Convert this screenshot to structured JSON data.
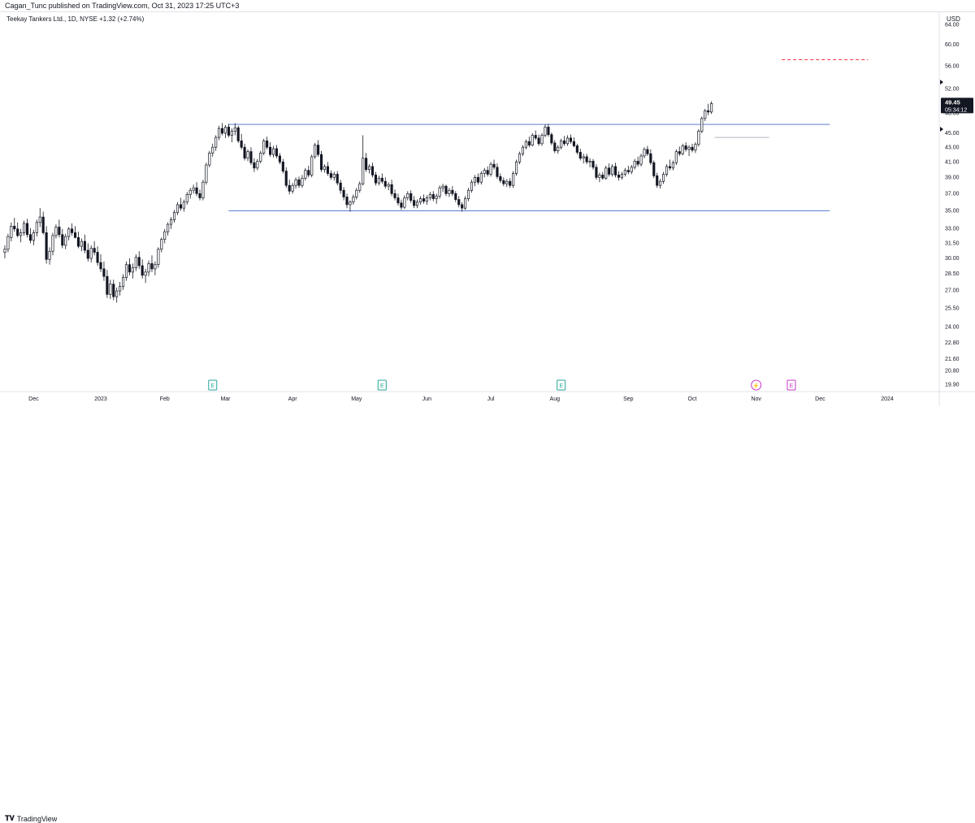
{
  "publisher_line": "Cagan_Tunc published on TradingView.com, Oct 31, 2023 17:25 UTC+3",
  "symbol_line": "Teekay Tankers Ltd., 1D, NYSE +1.32 (+2.74%)",
  "currency": "USD",
  "brand": "TradingView",
  "brand_icon": "tradingview-logo-icon",
  "colors": {
    "candle": "#131722",
    "support_resistance_line": "#5b7fd1",
    "target_line": "#f23645",
    "earnings_marker": "#26a69a",
    "event_marker": "#c837c8"
  },
  "chart_data": {
    "type": "candlestick",
    "y_scale": "log",
    "ylim": [
      19.5,
      66
    ],
    "y_ticks": [
      "64.00",
      "60.00",
      "56.00",
      "52.00",
      "48.00",
      "45.00",
      "43.00",
      "41.00",
      "39.00",
      "37.00",
      "35.00",
      "33.00",
      "31.50",
      "30.00",
      "28.50",
      "27.00",
      "25.50",
      "24.00",
      "22.80",
      "21.60",
      "20.80",
      "19.90"
    ],
    "x_ticks": [
      "Dec",
      "2023",
      "Feb",
      "Mar",
      "Apr",
      "May",
      "Jun",
      "Jul",
      "Aug",
      "Sep",
      "Oct",
      "Nov",
      "Dec",
      "2024"
    ],
    "x_tick_index": [
      9,
      30,
      50,
      69,
      90,
      110,
      132,
      152,
      172,
      195,
      215,
      235,
      255,
      276
    ],
    "x_range": [
      -0.5,
      292
    ],
    "last_price": {
      "value": "49.45",
      "countdown": "05:34:12",
      "price": 49.45
    },
    "price_markers": [
      {
        "price": 53.0
      },
      {
        "price": 45.5
      }
    ],
    "horizontal_lines": [
      {
        "price": 46.2,
        "x_start": 70,
        "x_end": 258,
        "style": "solid",
        "color": "#5b7fd1"
      },
      {
        "price": 34.9,
        "x_start": 70,
        "x_end": 258,
        "style": "solid",
        "color": "#5b7fd1"
      },
      {
        "price": 57.0,
        "x_start": 243,
        "x_end": 270,
        "style": "dashed",
        "color": "#f23645"
      },
      {
        "price": 44.3,
        "x_start": 222,
        "x_end": 239,
        "style": "solid",
        "color": "#b2b5be"
      }
    ],
    "events": [
      {
        "label": "E",
        "index": 65,
        "type": "earnings"
      },
      {
        "label": "E",
        "index": 118,
        "type": "earnings"
      },
      {
        "label": "E",
        "index": 174,
        "type": "earnings"
      },
      {
        "label": "⚡",
        "index": 235,
        "type": "dividend"
      },
      {
        "label": "E",
        "index": 246,
        "type": "earnings-upcoming"
      }
    ],
    "ohlc": [
      [
        30.5,
        31.2,
        29.9,
        30.8
      ],
      [
        30.8,
        32.4,
        30.5,
        32.1
      ],
      [
        32.0,
        33.6,
        31.6,
        33.2
      ],
      [
        33.2,
        34.1,
        32.6,
        32.9
      ],
      [
        32.9,
        33.6,
        32.0,
        32.2
      ],
      [
        32.2,
        32.9,
        31.5,
        32.5
      ],
      [
        32.5,
        33.8,
        32.2,
        33.5
      ],
      [
        33.5,
        34.0,
        32.0,
        32.3
      ],
      [
        32.3,
        33.0,
        31.4,
        31.7
      ],
      [
        31.7,
        32.8,
        31.2,
        32.5
      ],
      [
        32.5,
        33.9,
        32.1,
        33.6
      ],
      [
        33.6,
        35.2,
        33.1,
        34.2
      ],
      [
        34.2,
        34.8,
        32.3,
        32.5
      ],
      [
        32.5,
        33.2,
        29.4,
        29.8
      ],
      [
        29.8,
        31.0,
        29.3,
        30.6
      ],
      [
        30.6,
        32.5,
        30.2,
        32.2
      ],
      [
        32.2,
        33.4,
        31.9,
        33.1
      ],
      [
        33.1,
        33.9,
        32.0,
        32.3
      ],
      [
        32.3,
        32.9,
        30.9,
        31.2
      ],
      [
        31.2,
        32.4,
        30.8,
        32.1
      ],
      [
        32.1,
        33.1,
        31.7,
        32.9
      ],
      [
        32.9,
        33.5,
        32.2,
        32.5
      ],
      [
        32.5,
        33.2,
        31.9,
        32.0
      ],
      [
        32.0,
        32.6,
        30.9,
        31.1
      ],
      [
        31.1,
        31.9,
        30.6,
        31.6
      ],
      [
        31.6,
        32.3,
        30.4,
        30.7
      ],
      [
        30.7,
        31.4,
        29.6,
        29.9
      ],
      [
        29.9,
        31.2,
        29.5,
        30.9
      ],
      [
        30.9,
        31.6,
        30.2,
        30.5
      ],
      [
        30.5,
        31.1,
        29.2,
        29.5
      ],
      [
        29.5,
        30.3,
        28.6,
        28.9
      ],
      [
        28.9,
        29.6,
        27.8,
        28.2
      ],
      [
        28.2,
        28.8,
        26.3,
        26.6
      ],
      [
        26.6,
        27.9,
        26.2,
        27.5
      ],
      [
        27.5,
        27.9,
        26.1,
        26.4
      ],
      [
        26.4,
        27.2,
        25.9,
        26.9
      ],
      [
        26.9,
        27.7,
        26.5,
        27.3
      ],
      [
        27.3,
        28.4,
        27.0,
        28.1
      ],
      [
        28.1,
        29.6,
        27.8,
        29.3
      ],
      [
        29.3,
        29.9,
        28.3,
        28.6
      ],
      [
        28.6,
        29.4,
        28.0,
        29.0
      ],
      [
        29.0,
        30.3,
        28.7,
        30.0
      ],
      [
        30.0,
        30.6,
        28.9,
        29.2
      ],
      [
        29.2,
        29.8,
        28.0,
        28.3
      ],
      [
        28.3,
        28.9,
        27.6,
        28.6
      ],
      [
        28.6,
        29.7,
        28.2,
        29.4
      ],
      [
        29.4,
        30.2,
        28.6,
        28.9
      ],
      [
        28.9,
        29.6,
        28.3,
        29.3
      ],
      [
        29.3,
        31.0,
        29.0,
        30.8
      ],
      [
        30.8,
        32.0,
        30.5,
        31.8
      ],
      [
        31.8,
        32.9,
        31.4,
        32.6
      ],
      [
        32.6,
        33.6,
        32.2,
        33.4
      ],
      [
        33.4,
        34.2,
        32.9,
        33.9
      ],
      [
        33.9,
        35.0,
        33.6,
        34.7
      ],
      [
        34.7,
        35.9,
        34.4,
        35.6
      ],
      [
        35.6,
        36.4,
        34.9,
        35.2
      ],
      [
        35.2,
        36.2,
        34.8,
        35.9
      ],
      [
        35.9,
        37.1,
        35.6,
        36.8
      ],
      [
        36.8,
        37.6,
        36.3,
        37.3
      ],
      [
        37.3,
        38.0,
        36.9,
        37.6
      ],
      [
        37.6,
        38.3,
        36.6,
        36.9
      ],
      [
        36.9,
        37.4,
        36.1,
        36.4
      ],
      [
        36.4,
        38.6,
        36.1,
        38.3
      ],
      [
        38.3,
        40.8,
        38.0,
        40.5
      ],
      [
        40.5,
        42.4,
        40.2,
        42.1
      ],
      [
        42.1,
        43.4,
        41.6,
        42.9
      ],
      [
        42.9,
        44.6,
        42.4,
        44.3
      ],
      [
        44.3,
        46.0,
        43.9,
        45.6
      ],
      [
        45.6,
        46.4,
        44.6,
        44.9
      ],
      [
        44.9,
        46.1,
        44.2,
        45.8
      ],
      [
        45.8,
        46.3,
        44.3,
        44.6
      ],
      [
        44.6,
        45.6,
        43.6,
        45.2
      ],
      [
        45.2,
        46.4,
        44.6,
        45.7
      ],
      [
        45.7,
        46.0,
        43.5,
        43.8
      ],
      [
        43.8,
        44.8,
        42.6,
        42.9
      ],
      [
        42.9,
        43.4,
        41.1,
        41.4
      ],
      [
        41.4,
        42.6,
        41.0,
        42.3
      ],
      [
        42.3,
        42.9,
        40.5,
        40.8
      ],
      [
        40.8,
        41.4,
        39.6,
        40.1
      ],
      [
        40.1,
        41.3,
        39.8,
        41.0
      ],
      [
        41.0,
        42.4,
        40.7,
        42.1
      ],
      [
        42.1,
        44.1,
        41.8,
        43.8
      ],
      [
        43.8,
        44.4,
        42.6,
        42.9
      ],
      [
        42.9,
        43.6,
        41.6,
        41.9
      ],
      [
        41.9,
        43.1,
        41.5,
        42.7
      ],
      [
        42.7,
        43.2,
        41.4,
        41.7
      ],
      [
        41.7,
        42.1,
        40.6,
        40.9
      ],
      [
        40.9,
        41.3,
        39.4,
        39.7
      ],
      [
        39.7,
        40.2,
        37.6,
        37.9
      ],
      [
        37.9,
        38.6,
        36.8,
        37.2
      ],
      [
        37.2,
        38.2,
        36.9,
        37.9
      ],
      [
        37.9,
        38.9,
        37.5,
        38.6
      ],
      [
        38.6,
        39.0,
        37.6,
        37.9
      ],
      [
        37.9,
        39.2,
        37.6,
        38.8
      ],
      [
        38.8,
        40.1,
        38.5,
        39.8
      ],
      [
        39.8,
        40.4,
        38.9,
        39.2
      ],
      [
        39.2,
        41.9,
        38.9,
        41.6
      ],
      [
        41.6,
        43.5,
        41.3,
        43.2
      ],
      [
        43.2,
        43.9,
        41.6,
        41.9
      ],
      [
        41.9,
        42.4,
        39.6,
        39.9
      ],
      [
        39.9,
        40.6,
        39.5,
        40.3
      ],
      [
        40.3,
        40.9,
        39.1,
        39.4
      ],
      [
        39.4,
        39.8,
        38.6,
        38.9
      ],
      [
        38.9,
        39.6,
        38.5,
        39.3
      ],
      [
        39.3,
        39.7,
        37.9,
        38.2
      ],
      [
        38.2,
        38.6,
        36.9,
        37.3
      ],
      [
        37.3,
        37.7,
        36.1,
        36.5
      ],
      [
        36.5,
        36.9,
        35.2,
        35.6
      ],
      [
        35.6,
        36.1,
        34.8,
        35.9
      ],
      [
        35.9,
        36.8,
        35.6,
        36.5
      ],
      [
        36.5,
        37.6,
        36.2,
        37.3
      ],
      [
        37.3,
        38.4,
        37.0,
        38.1
      ],
      [
        38.1,
        44.6,
        37.9,
        41.4
      ],
      [
        41.4,
        42.1,
        39.6,
        39.9
      ],
      [
        39.9,
        40.6,
        39.4,
        40.3
      ],
      [
        40.3,
        40.8,
        38.9,
        39.2
      ],
      [
        39.2,
        39.6,
        37.9,
        38.2
      ],
      [
        38.2,
        39.1,
        37.9,
        38.8
      ],
      [
        38.8,
        39.4,
        38.1,
        38.4
      ],
      [
        38.4,
        38.9,
        37.5,
        37.8
      ],
      [
        37.8,
        38.3,
        37.3,
        38.0
      ],
      [
        38.0,
        38.6,
        36.6,
        36.9
      ],
      [
        36.9,
        37.4,
        36.1,
        36.4
      ],
      [
        36.4,
        36.9,
        35.5,
        35.8
      ],
      [
        35.8,
        36.2,
        35.0,
        35.3
      ],
      [
        35.3,
        36.7,
        35.1,
        36.4
      ],
      [
        36.4,
        37.2,
        36.1,
        36.9
      ],
      [
        36.9,
        37.3,
        35.8,
        36.1
      ],
      [
        36.1,
        36.6,
        35.2,
        35.5
      ],
      [
        35.5,
        36.2,
        35.2,
        35.9
      ],
      [
        35.9,
        36.6,
        35.6,
        36.3
      ],
      [
        36.3,
        36.8,
        35.7,
        36.0
      ],
      [
        36.0,
        36.7,
        35.6,
        36.4
      ],
      [
        36.4,
        37.1,
        36.1,
        36.8
      ],
      [
        36.8,
        37.2,
        36.0,
        36.3
      ],
      [
        36.3,
        36.9,
        35.7,
        36.6
      ],
      [
        36.6,
        37.9,
        36.3,
        37.6
      ],
      [
        37.6,
        38.1,
        37.1,
        37.8
      ],
      [
        37.8,
        38.0,
        36.6,
        36.9
      ],
      [
        36.9,
        37.6,
        36.5,
        37.3
      ],
      [
        37.3,
        37.8,
        36.6,
        36.9
      ],
      [
        36.9,
        37.2,
        35.9,
        36.2
      ],
      [
        36.2,
        36.6,
        35.3,
        35.6
      ],
      [
        35.6,
        35.9,
        34.8,
        35.2
      ],
      [
        35.2,
        36.6,
        35.0,
        36.3
      ],
      [
        36.3,
        37.6,
        36.0,
        37.3
      ],
      [
        37.3,
        38.6,
        37.0,
        38.3
      ],
      [
        38.3,
        39.2,
        37.8,
        38.9
      ],
      [
        38.9,
        39.4,
        38.0,
        38.3
      ],
      [
        38.3,
        39.7,
        38.0,
        39.4
      ],
      [
        39.4,
        40.1,
        38.9,
        39.8
      ],
      [
        39.8,
        40.3,
        39.0,
        39.3
      ],
      [
        39.3,
        40.9,
        39.0,
        40.6
      ],
      [
        40.6,
        41.2,
        39.9,
        40.2
      ],
      [
        40.2,
        40.7,
        38.7,
        39.0
      ],
      [
        39.0,
        39.4,
        38.2,
        38.5
      ],
      [
        38.5,
        38.9,
        37.8,
        38.1
      ],
      [
        38.1,
        38.7,
        37.7,
        38.4
      ],
      [
        38.4,
        38.8,
        37.6,
        37.9
      ],
      [
        37.9,
        39.7,
        37.6,
        39.4
      ],
      [
        39.4,
        41.2,
        39.1,
        40.9
      ],
      [
        40.9,
        42.3,
        40.6,
        42.0
      ],
      [
        42.0,
        43.2,
        41.7,
        42.9
      ],
      [
        42.9,
        44.0,
        42.6,
        43.7
      ],
      [
        43.7,
        44.4,
        42.9,
        43.2
      ],
      [
        43.2,
        44.9,
        43.0,
        44.6
      ],
      [
        44.6,
        45.3,
        43.9,
        44.2
      ],
      [
        44.2,
        44.7,
        43.1,
        43.4
      ],
      [
        43.4,
        44.9,
        43.1,
        44.6
      ],
      [
        44.6,
        46.2,
        44.3,
        45.8
      ],
      [
        45.8,
        46.3,
        44.4,
        44.7
      ],
      [
        44.7,
        45.0,
        43.2,
        43.5
      ],
      [
        43.5,
        43.9,
        42.1,
        42.4
      ],
      [
        42.4,
        43.2,
        42.0,
        42.9
      ],
      [
        42.9,
        44.1,
        42.6,
        43.8
      ],
      [
        43.8,
        44.5,
        43.1,
        43.4
      ],
      [
        43.4,
        44.6,
        43.1,
        44.2
      ],
      [
        44.2,
        44.7,
        43.4,
        43.7
      ],
      [
        43.7,
        44.3,
        42.9,
        43.1
      ],
      [
        43.1,
        43.4,
        41.9,
        42.2
      ],
      [
        42.2,
        42.7,
        41.1,
        41.4
      ],
      [
        41.4,
        42.0,
        40.7,
        41.6
      ],
      [
        41.6,
        42.0,
        40.6,
        40.9
      ],
      [
        40.9,
        41.4,
        40.2,
        41.0
      ],
      [
        41.0,
        41.3,
        39.9,
        40.2
      ],
      [
        40.2,
        40.6,
        38.6,
        38.9
      ],
      [
        38.9,
        39.5,
        38.3,
        39.2
      ],
      [
        39.2,
        39.6,
        38.6,
        38.8
      ],
      [
        38.8,
        40.4,
        38.6,
        40.1
      ],
      [
        40.1,
        40.7,
        39.0,
        39.3
      ],
      [
        39.3,
        40.6,
        39.0,
        40.3
      ],
      [
        40.3,
        40.8,
        38.9,
        39.2
      ],
      [
        39.2,
        39.7,
        38.5,
        38.9
      ],
      [
        38.9,
        39.6,
        38.6,
        39.3
      ],
      [
        39.3,
        40.1,
        39.0,
        39.8
      ],
      [
        39.8,
        40.4,
        39.3,
        39.6
      ],
      [
        39.6,
        40.5,
        39.3,
        40.2
      ],
      [
        40.2,
        41.3,
        39.9,
        41.0
      ],
      [
        41.0,
        41.6,
        40.3,
        40.6
      ],
      [
        40.6,
        42.0,
        40.3,
        41.7
      ],
      [
        41.7,
        42.9,
        41.4,
        42.6
      ],
      [
        42.6,
        43.1,
        41.7,
        42.0
      ],
      [
        42.0,
        42.6,
        40.5,
        40.8
      ],
      [
        40.8,
        41.1,
        38.8,
        39.1
      ],
      [
        39.1,
        39.5,
        37.6,
        37.9
      ],
      [
        37.9,
        38.7,
        37.5,
        38.4
      ],
      [
        38.4,
        39.6,
        38.1,
        39.3
      ],
      [
        39.3,
        40.6,
        39.0,
        40.3
      ],
      [
        40.3,
        41.2,
        39.8,
        40.1
      ],
      [
        40.1,
        41.1,
        39.8,
        40.8
      ],
      [
        40.8,
        42.6,
        40.5,
        42.3
      ],
      [
        42.3,
        43.0,
        41.7,
        42.0
      ],
      [
        42.0,
        43.4,
        41.8,
        43.1
      ],
      [
        43.1,
        43.6,
        42.3,
        42.6
      ],
      [
        42.6,
        43.2,
        41.7,
        42.9
      ],
      [
        42.9,
        43.4,
        42.2,
        42.5
      ],
      [
        42.5,
        43.6,
        42.1,
        43.3
      ],
      [
        43.3,
        45.5,
        43.0,
        45.2
      ],
      [
        45.2,
        47.4,
        44.9,
        47.1
      ],
      [
        47.1,
        48.6,
        46.7,
        48.3
      ],
      [
        48.3,
        49.4,
        47.6,
        48.1
      ],
      [
        48.1,
        49.8,
        47.8,
        49.45
      ]
    ]
  }
}
